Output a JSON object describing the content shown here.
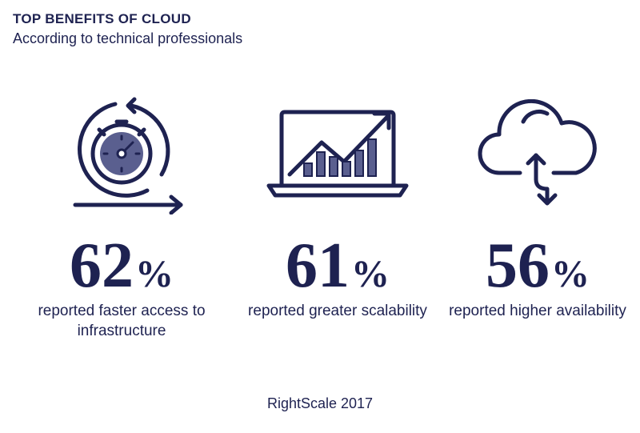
{
  "header": {
    "title": "TOP BENEFITS OF CLOUD",
    "subtitle": "According to technical professionals"
  },
  "stats": [
    {
      "value": "62",
      "unit": "%",
      "description": "reported faster access to infrastructure",
      "icon": "stopwatch-icon"
    },
    {
      "value": "61",
      "unit": "%",
      "description": "reported greater scalability",
      "icon": "laptop-growth-chart-icon"
    },
    {
      "value": "56",
      "unit": "%",
      "description": "reported higher availability",
      "icon": "cloud-sync-icon"
    }
  ],
  "source": "RightScale 2017",
  "colors": {
    "navy": "#1e2251",
    "accent": "#5a5f8f"
  }
}
